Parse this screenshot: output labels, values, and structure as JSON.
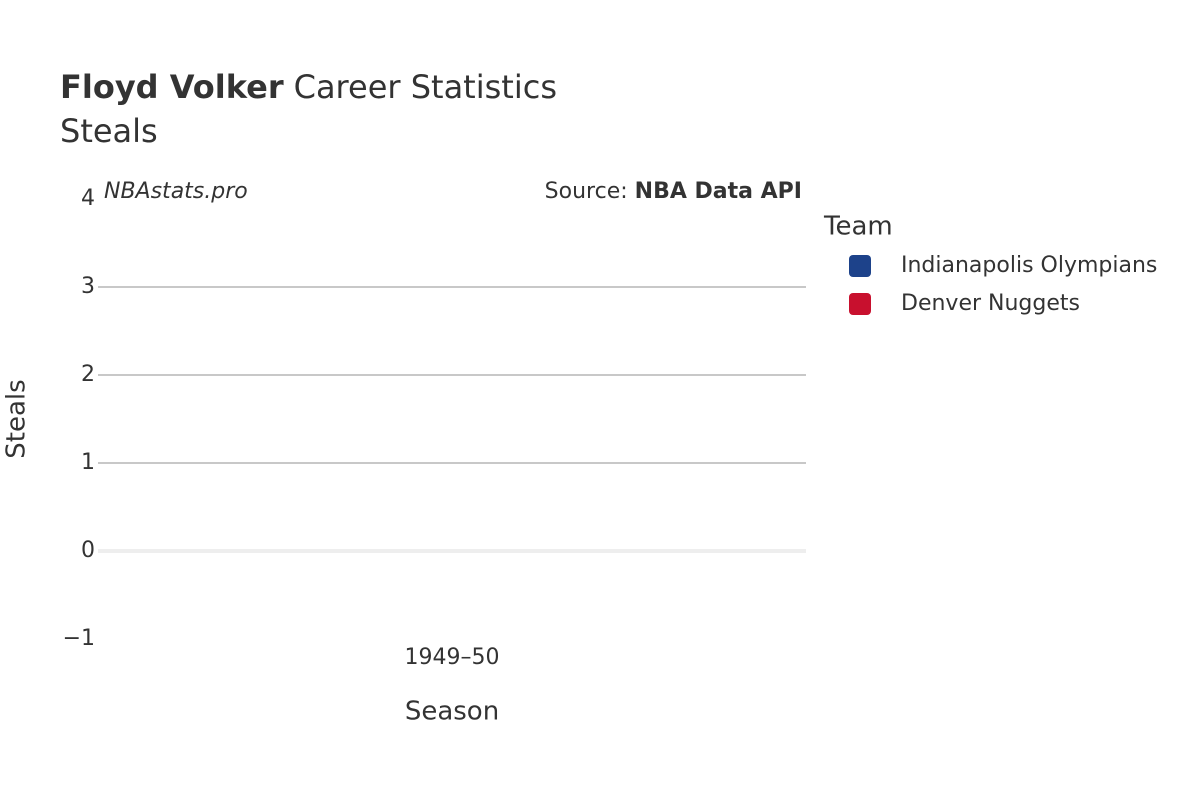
{
  "chart_data": {
    "type": "bar",
    "title_name": "Floyd Volker",
    "title_rest": "Career Statistics",
    "subtitle": "Steals",
    "watermark": "NBAstats.pro",
    "source_label": "Source:",
    "source_name": "NBA Data API",
    "x_label": "Season",
    "y_label": "Steals",
    "categories": [
      "1949–50"
    ],
    "legend_title": "Team",
    "series": [
      {
        "name": "Indianapolis Olympians",
        "color": "#1d428a",
        "values": [
          null
        ]
      },
      {
        "name": "Denver Nuggets",
        "color": "#c8102e",
        "values": [
          null
        ]
      }
    ],
    "ylim": [
      -1,
      4
    ],
    "yticks": [
      {
        "value": -1,
        "label": "−1"
      },
      0,
      1,
      2,
      3,
      4
    ],
    "grid": true
  }
}
